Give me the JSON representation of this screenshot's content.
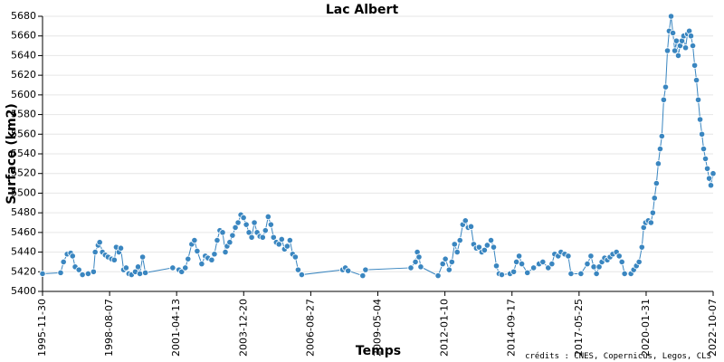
{
  "chart_data": {
    "type": "line",
    "title": "Lac Albert",
    "x_label": "Temps",
    "y_label": "Surface (km2)",
    "annotation": "crédits : CNES, Copernicus, Legos, CLS",
    "color": "#3a86c0",
    "grid": true,
    "xlim": [
      "1995-11-30",
      "2022-10-07"
    ],
    "xticks": [
      "1995-11-30",
      "1998-08-07",
      "2001-04-13",
      "2003-12-20",
      "2006-08-27",
      "2009-05-04",
      "2012-01-10",
      "2014-09-17",
      "2017-05-25",
      "2020-01-31",
      "2022-10-07"
    ],
    "ylim": [
      5400,
      5680
    ],
    "yticks": [
      5400,
      5420,
      5440,
      5460,
      5480,
      5500,
      5520,
      5540,
      5560,
      5580,
      5600,
      5620,
      5640,
      5660,
      5680
    ],
    "x": [
      "1995-11-30",
      "1996-08-21",
      "1996-10-02",
      "1996-11-24",
      "1997-01-15",
      "1997-02-12",
      "1997-03-21",
      "1997-05-15",
      "1997-07-06",
      "1997-09-27",
      "1997-12-15",
      "1998-01-08",
      "1998-02-20",
      "1998-03-15",
      "1998-04-24",
      "1998-06-05",
      "1998-07-15",
      "1998-09-05",
      "1998-10-15",
      "1998-11-12",
      "1998-12-21",
      "1999-01-18",
      "1999-02-27",
      "1999-04-06",
      "1999-05-15",
      "1999-06-24",
      "1999-08-18",
      "1999-09-27",
      "1999-10-24",
      "1999-12-03",
      "2000-01-12",
      "2001-02-15",
      "2001-05-17",
      "2001-06-26",
      "2001-08-18",
      "2001-09-27",
      "2001-11-20",
      "2001-12-30",
      "2002-02-08",
      "2002-04-15",
      "2002-06-06",
      "2002-07-15",
      "2002-09-08",
      "2002-10-18",
      "2002-11-27",
      "2003-01-05",
      "2003-02-15",
      "2003-03-27",
      "2003-04-21",
      "2003-05-30",
      "2003-07-09",
      "2003-08-20",
      "2003-09-29",
      "2003-11-08",
      "2003-12-18",
      "2004-01-27",
      "2004-03-06",
      "2004-04-15",
      "2004-05-24",
      "2004-07-03",
      "2004-08-14",
      "2004-09-23",
      "2004-11-02",
      "2004-12-12",
      "2005-01-21",
      "2005-03-01",
      "2005-04-10",
      "2005-05-19",
      "2005-06-28",
      "2005-08-08",
      "2005-09-17",
      "2005-10-26",
      "2005-12-05",
      "2006-01-14",
      "2006-02-23",
      "2006-04-17",
      "2007-12-06",
      "2008-01-15",
      "2008-02-25",
      "2008-09-25",
      "2008-11-05",
      "2010-08-30",
      "2010-11-05",
      "2010-12-02",
      "2010-12-27",
      "2011-01-22",
      "2011-10-02",
      "2011-12-09",
      "2012-01-17",
      "2012-03-12",
      "2012-04-21",
      "2012-05-30",
      "2012-07-08",
      "2012-08-17",
      "2012-09-27",
      "2012-11-05",
      "2012-12-15",
      "2013-01-26",
      "2013-03-06",
      "2013-04-14",
      "2013-05-24",
      "2013-07-02",
      "2013-08-11",
      "2013-09-20",
      "2013-11-14",
      "2013-12-23",
      "2014-02-01",
      "2014-03-12",
      "2014-04-21",
      "2014-08-20",
      "2014-10-12",
      "2014-11-21",
      "2014-12-30",
      "2015-02-08",
      "2015-04-30",
      "2015-07-30",
      "2015-10-18",
      "2015-12-12",
      "2016-02-29",
      "2016-04-23",
      "2016-06-02",
      "2016-07-24",
      "2016-09-02",
      "2016-10-27",
      "2016-12-18",
      "2017-01-27",
      "2017-06-21",
      "2017-09-23",
      "2017-11-14",
      "2017-12-26",
      "2018-02-04",
      "2018-03-15",
      "2018-04-24",
      "2018-06-02",
      "2018-07-12",
      "2018-08-21",
      "2018-09-30",
      "2018-11-23",
      "2019-01-02",
      "2019-02-11",
      "2019-03-22",
      "2019-06-23",
      "2019-08-02",
      "2019-09-11",
      "2019-10-20",
      "2019-11-30",
      "2019-12-26",
      "2020-01-23",
      "2020-03-02",
      "2020-04-11",
      "2020-05-08",
      "2020-06-02",
      "2020-06-30",
      "2020-07-27",
      "2020-08-23",
      "2020-09-17",
      "2020-10-14",
      "2020-11-11",
      "2020-12-08",
      "2021-01-02",
      "2021-01-30",
      "2021-02-26",
      "2021-03-25",
      "2021-04-18",
      "2021-05-15",
      "2021-06-11",
      "2021-07-08",
      "2021-08-02",
      "2021-08-30",
      "2021-09-26",
      "2021-10-23",
      "2021-11-17",
      "2021-12-14",
      "2022-01-10",
      "2022-02-05",
      "2022-03-03",
      "2022-03-30",
      "2022-04-26",
      "2022-05-21",
      "2022-06-17",
      "2022-07-14",
      "2022-08-10",
      "2022-09-04",
      "2022-10-07"
    ],
    "values": [
      5418,
      5419,
      5430,
      5438,
      5439,
      5436,
      5425,
      5422,
      5417,
      5418,
      5420,
      5440,
      5447,
      5450,
      5440,
      5437,
      5435,
      5433,
      5432,
      5445,
      5440,
      5444,
      5422,
      5424,
      5418,
      5417,
      5420,
      5425,
      5418,
      5435,
      5419,
      5424,
      5422,
      5420,
      5424,
      5433,
      5448,
      5452,
      5441,
      5428,
      5436,
      5434,
      5432,
      5438,
      5452,
      5462,
      5460,
      5440,
      5446,
      5450,
      5457,
      5465,
      5470,
      5478,
      5475,
      5468,
      5460,
      5455,
      5470,
      5460,
      5456,
      5455,
      5462,
      5476,
      5468,
      5455,
      5450,
      5448,
      5453,
      5443,
      5446,
      5452,
      5438,
      5435,
      5422,
      5417,
      5422,
      5424,
      5421,
      5416,
      5422,
      5424,
      5430,
      5440,
      5435,
      5425,
      5416,
      5428,
      5433,
      5422,
      5430,
      5448,
      5440,
      5452,
      5468,
      5472,
      5465,
      5466,
      5448,
      5444,
      5445,
      5440,
      5442,
      5447,
      5452,
      5445,
      5426,
      5418,
      5417,
      5418,
      5420,
      5430,
      5436,
      5428,
      5419,
      5424,
      5428,
      5430,
      5424,
      5428,
      5438,
      5436,
      5440,
      5438,
      5436,
      5418,
      5418,
      5428,
      5436,
      5425,
      5418,
      5425,
      5430,
      5434,
      5432,
      5435,
      5438,
      5440,
      5436,
      5430,
      5418,
      5418,
      5422,
      5426,
      5430,
      5445,
      5465,
      5470,
      5472,
      5470,
      5480,
      5495,
      5510,
      5530,
      5545,
      5558,
      5595,
      5608,
      5645,
      5665,
      5680,
      5663,
      5645,
      5655,
      5640,
      5650,
      5655,
      5660,
      5648,
      5662,
      5665,
      5660,
      5650,
      5630,
      5615,
      5595,
      5575,
      5560,
      5545,
      5535,
      5525,
      5515,
      5508,
      5520
    ]
  }
}
